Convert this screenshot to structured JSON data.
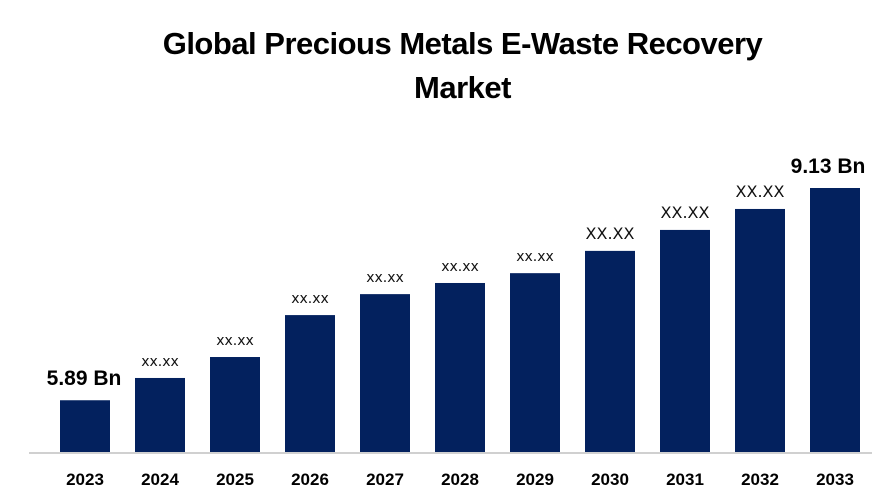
{
  "chart_data": {
    "type": "bar",
    "title": "Global Precious Metals E-Waste Recovery Market",
    "title_lines": [
      "Global Precious Metals E-Waste Recovery",
      "Market"
    ],
    "xlabel": "",
    "ylabel": "",
    "unit": "Bn",
    "categories": [
      "2023",
      "2024",
      "2025",
      "2026",
      "2027",
      "2028",
      "2029",
      "2030",
      "2031",
      "2032",
      "2033"
    ],
    "values": [
      5.89,
      6.23,
      6.55,
      7.19,
      7.51,
      7.68,
      7.83,
      8.17,
      8.49,
      8.81,
      9.13
    ],
    "data_labels": [
      "5.89 Bn",
      "xx.xx",
      "xx.xx",
      "xx.xx",
      "xx.xx",
      "xx.xx",
      "xx.xx",
      "XX.XX",
      "XX.XX",
      "XX.XX",
      "9.13 Bn"
    ],
    "ylim": [
      5.1,
      9.13
    ],
    "grid": false,
    "legend": "none",
    "bar_color": "#03215e",
    "axis_color": "#d0d0d0"
  }
}
